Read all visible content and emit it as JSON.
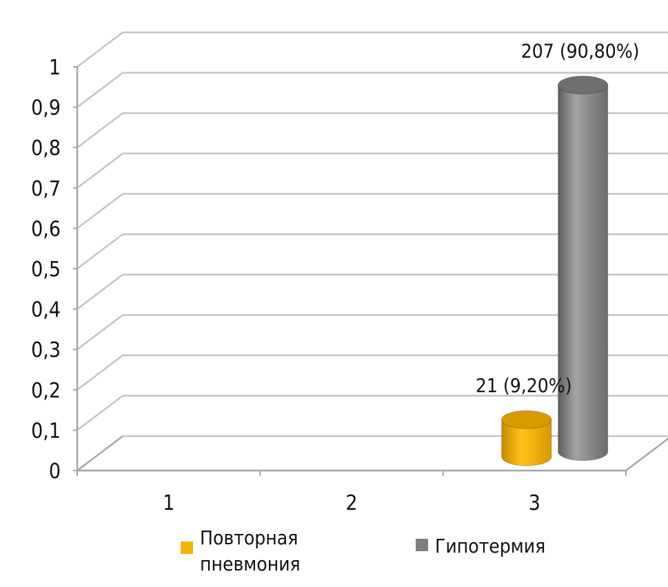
{
  "chart_data": {
    "type": "bar",
    "style": "3d-cylinder",
    "categories": [
      "1",
      "2",
      "3"
    ],
    "y_ticks": [
      "0",
      "0,1",
      "0,2",
      "0,3",
      "0,4",
      "0,5",
      "0,6",
      "0,7",
      "0,8",
      "0,9",
      "1"
    ],
    "ylim": [
      0,
      1
    ],
    "grid": true,
    "legend_position": "bottom",
    "series": [
      {
        "name": "Повторная пневмония",
        "legend_lines": [
          "Повторная",
          "пневмония"
        ],
        "color": "#F5B400",
        "values": [
          0,
          0,
          0.092
        ],
        "data_labels": [
          "",
          "",
          "21 (9,20%)"
        ]
      },
      {
        "name": "Гипотермия",
        "legend_lines": [
          "Гипотермия"
        ],
        "color": "#7F7F7F",
        "values": [
          0,
          0,
          0.908
        ],
        "data_labels": [
          "",
          "",
          "207 (90,80%)"
        ]
      }
    ]
  }
}
